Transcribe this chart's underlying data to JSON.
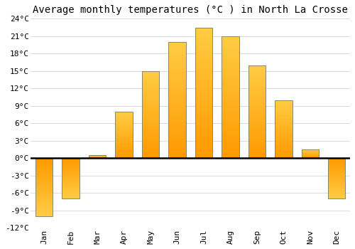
{
  "months": [
    "Jan",
    "Feb",
    "Mar",
    "Apr",
    "May",
    "Jun",
    "Jul",
    "Aug",
    "Sep",
    "Oct",
    "Nov",
    "Dec"
  ],
  "values": [
    -10.0,
    -7.0,
    0.5,
    8.0,
    15.0,
    20.0,
    22.5,
    21.0,
    16.0,
    10.0,
    1.5,
    -7.0
  ],
  "title": "Average monthly temperatures (°C ) in North La Crosse",
  "bar_color_light": "#FFCC44",
  "bar_color_dark": "#FF9900",
  "bar_edge_color": "#888866",
  "background_color": "#FFFFFF",
  "grid_color": "#DDDDDD",
  "ylim": [
    -12,
    24
  ],
  "yticks": [
    -12,
    -9,
    -6,
    -3,
    0,
    3,
    6,
    9,
    12,
    15,
    18,
    21,
    24
  ],
  "ytick_labels": [
    "-12°C",
    "-9°C",
    "-6°C",
    "-3°C",
    "0°C",
    "3°C",
    "6°C",
    "9°C",
    "12°C",
    "15°C",
    "18°C",
    "21°C",
    "24°C"
  ],
  "zero_line_color": "#000000",
  "title_fontsize": 10,
  "tick_fontsize": 8,
  "bar_width": 0.65,
  "n_grad": 80
}
